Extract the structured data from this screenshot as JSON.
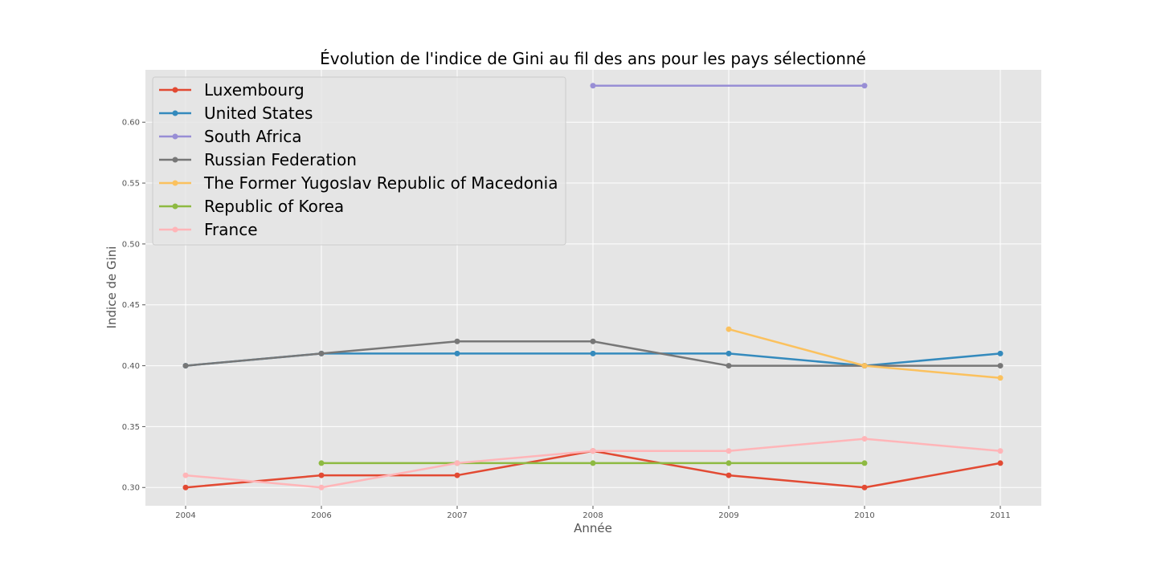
{
  "chart_data": {
    "type": "line",
    "title": "Évolution de l'indice de Gini au fil des ans pour les pays sélectionné",
    "xlabel": "Année",
    "ylabel": "Indice de Gini",
    "categories": [
      "2004",
      "2006",
      "2007",
      "2008",
      "2009",
      "2010",
      "2011"
    ],
    "yticks": [
      "0.30",
      "0.35",
      "0.40",
      "0.45",
      "0.50",
      "0.55",
      "0.60"
    ],
    "ylim": [
      0.285,
      0.643
    ],
    "grid": true,
    "legend_position": "top-left",
    "series": [
      {
        "name": "Luxembourg",
        "color": "#E24A33",
        "values": [
          0.3,
          0.31,
          0.31,
          0.33,
          0.31,
          0.3,
          0.32
        ]
      },
      {
        "name": "United States",
        "color": "#348ABD",
        "values": [
          0.4,
          0.41,
          0.41,
          0.41,
          0.41,
          0.4,
          0.41
        ]
      },
      {
        "name": "South Africa",
        "color": "#988ED5",
        "values": [
          null,
          null,
          null,
          0.63,
          null,
          0.63,
          null
        ]
      },
      {
        "name": "Russian Federation",
        "color": "#777777",
        "values": [
          0.4,
          0.41,
          0.42,
          0.42,
          0.4,
          0.4,
          0.4
        ]
      },
      {
        "name": "The Former Yugoslav Republic of Macedonia",
        "color": "#FBC15E",
        "values": [
          null,
          null,
          null,
          null,
          0.43,
          0.4,
          0.39
        ]
      },
      {
        "name": "Republic of Korea",
        "color": "#8EBA42",
        "values": [
          null,
          0.32,
          0.32,
          0.32,
          0.32,
          0.32,
          null
        ]
      },
      {
        "name": "France",
        "color": "#FFB5B8",
        "values": [
          0.31,
          0.3,
          0.32,
          0.33,
          0.33,
          0.34,
          0.33
        ]
      }
    ]
  }
}
